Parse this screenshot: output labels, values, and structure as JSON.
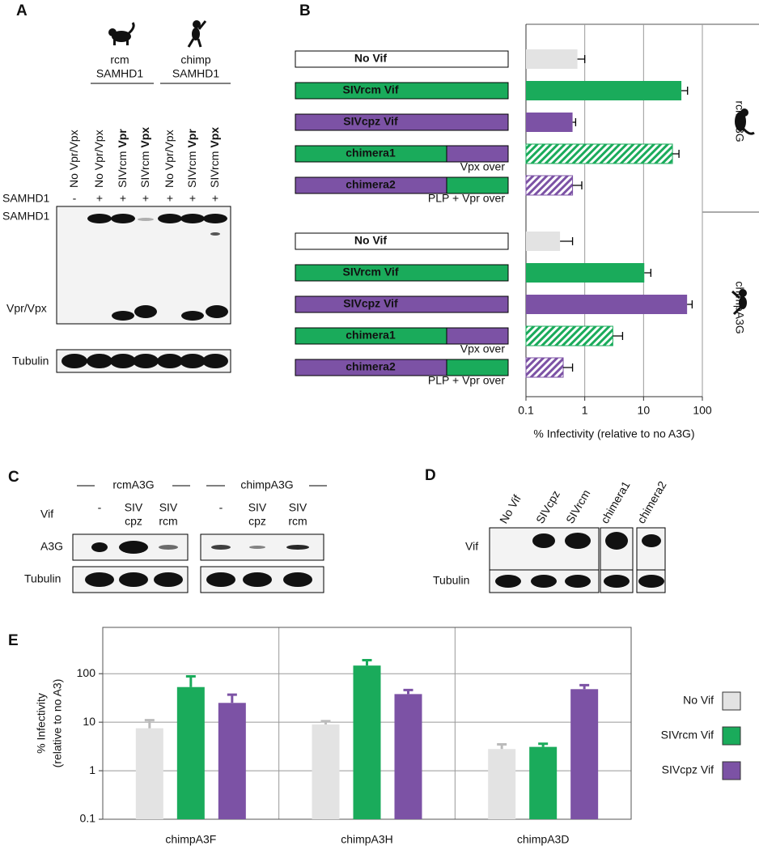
{
  "panel_letters": [
    "A",
    "B",
    "C",
    "D",
    "E"
  ],
  "panel_a": {
    "species": [
      [
        "rcm",
        "SAMHD1"
      ],
      [
        "chimp",
        "SAMHD1"
      ]
    ],
    "lanes": [
      {
        "text": "No Vpr/Vpx"
      },
      {
        "text": "No Vpr/Vpx"
      },
      {
        "text": "SIVrcm",
        "bold": "Vpr"
      },
      {
        "text": "SIVrcm",
        "bold": "Vpx"
      },
      {
        "text": "No Vpr/Vpx"
      },
      {
        "text": "SIVrcm",
        "bold": "Vpr"
      },
      {
        "text": "SIVrcm",
        "bold": "Vpx"
      }
    ],
    "row_label": "SAMHD1",
    "row_marks": [
      "-",
      "+",
      "+",
      "+",
      "+",
      "+",
      "+"
    ],
    "blot_labels": [
      "SAMHD1",
      "Vpr/Vpx",
      "Tubulin"
    ]
  },
  "panel_c": {
    "groups": [
      "rcmA3G",
      "chimpA3G"
    ],
    "row_label": "Vif",
    "lanes": [
      [
        "-"
      ],
      [
        "SIV",
        "cpz"
      ],
      [
        "SIV",
        "rcm"
      ]
    ],
    "blot_labels": [
      "A3G",
      "Tubulin"
    ]
  },
  "panel_d": {
    "lanes": [
      "No Vif",
      "SIVcpz",
      "SIVrcm",
      "chimera1",
      "chimera2"
    ],
    "blot_labels": [
      "Vif",
      "Tubulin"
    ]
  },
  "chart_data": [
    {
      "type": "hbar",
      "categories": [
        "No Vif",
        "SIVrcm Vif",
        "SIVcpz Vif",
        "chimera1",
        "chimera2"
      ],
      "notes": [
        null,
        null,
        null,
        "Vpx over",
        "PLP + Vpr over"
      ],
      "colors": [
        "#e3e3e3",
        "#1aab5b",
        "#7c52a5",
        "#1aab5b",
        "#7c52a5"
      ],
      "hatched": [
        false,
        false,
        false,
        true,
        true
      ],
      "series": [
        {
          "name": "rcmA3G",
          "values": [
            0.75,
            44,
            0.62,
            31,
            0.62
          ],
          "errors": [
            0.25,
            12,
            0.08,
            9,
            0.27
          ]
        },
        {
          "name": "chimpA3G",
          "values": [
            0.38,
            10.3,
            55,
            3.0,
            0.43
          ],
          "errors": [
            0.24,
            3,
            12,
            1.4,
            0.19
          ]
        }
      ],
      "xlabel": "% Infectivity (relative to no A3G)",
      "xlim": [
        0.1,
        100
      ],
      "xticks": [
        0.1,
        1,
        10,
        100
      ],
      "log_x": true,
      "grid": true
    },
    {
      "type": "bar",
      "categories": [
        "chimpA3F",
        "chimpA3H",
        "chimpA3D"
      ],
      "series": [
        {
          "name": "No Vif",
          "color": "#e3e3e3",
          "values": [
            7.5,
            9,
            2.8
          ],
          "errors": [
            3.5,
            1.5,
            0.7
          ]
        },
        {
          "name": "SIVrcm Vif",
          "color": "#1aab5b",
          "values": [
            53,
            147,
            3.1
          ],
          "errors": [
            35,
            43,
            0.5
          ]
        },
        {
          "name": "SIVcpz Vif",
          "color": "#7c52a5",
          "values": [
            25,
            38,
            48
          ],
          "errors": [
            12,
            8,
            10
          ]
        }
      ],
      "ylabel": [
        "% Infectivity",
        "(relative to no A3)"
      ],
      "ylim": [
        0.1,
        900
      ],
      "yticks": [
        0.1,
        1,
        10,
        100
      ],
      "log_y": true,
      "grid": true,
      "legend": "right"
    }
  ]
}
